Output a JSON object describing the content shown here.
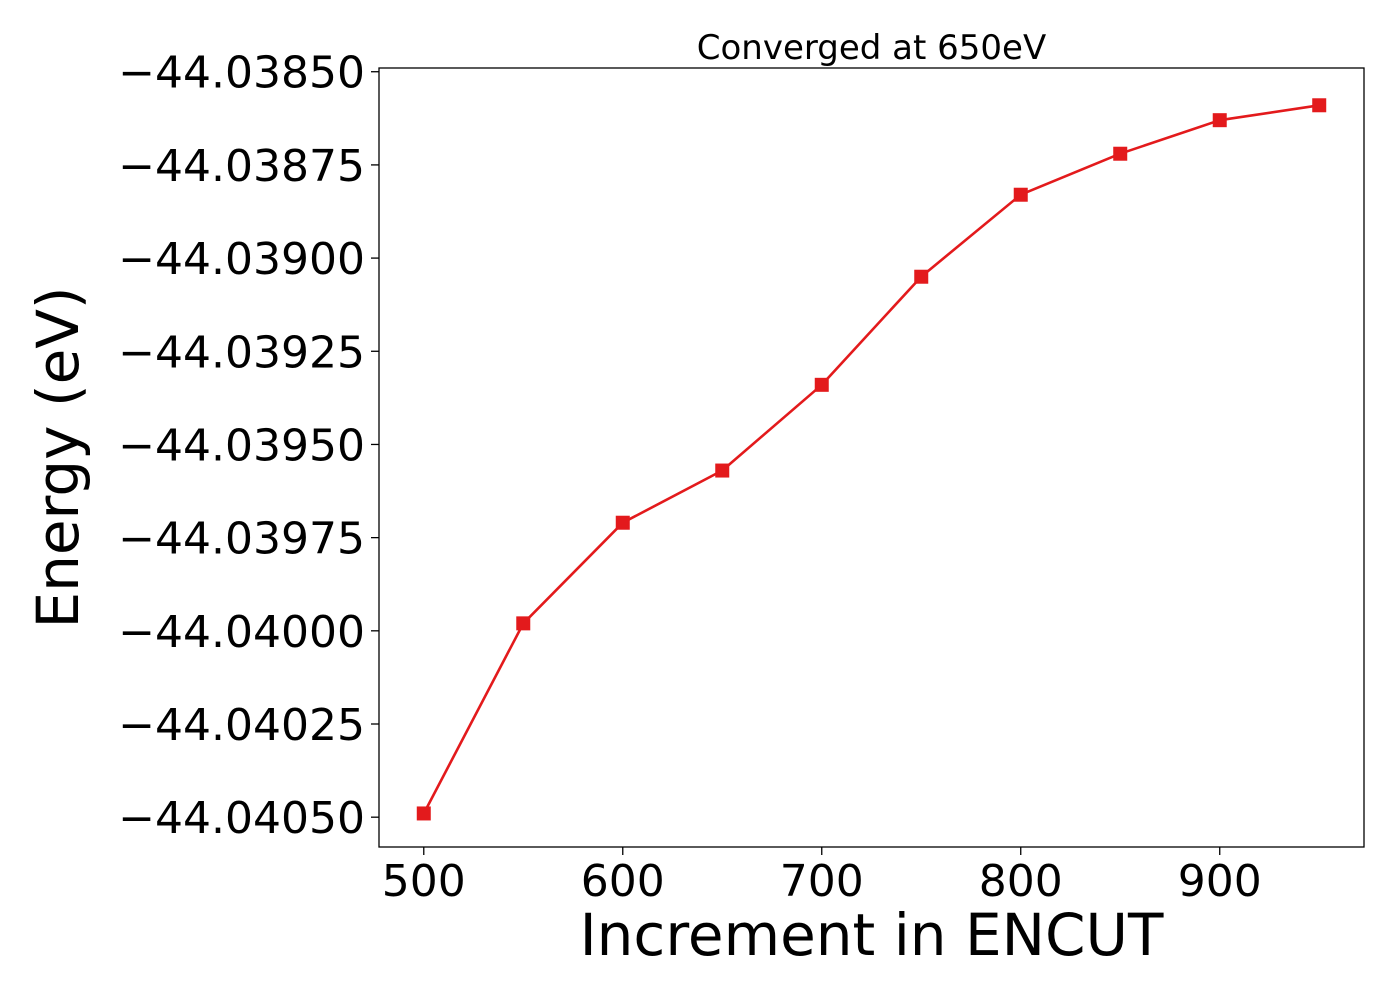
{
  "chart_data": {
    "type": "line",
    "title": "Converged at 650eV",
    "xlabel": "Increment in ENCUT",
    "ylabel": "Energy (eV)",
    "xlim": [
      477.5,
      972.5
    ],
    "ylim": [
      -44.04058,
      -44.03849
    ],
    "xticks": [
      500,
      600,
      700,
      800,
      900
    ],
    "xtick_labels": [
      "500",
      "600",
      "700",
      "800",
      "900"
    ],
    "yticks": [
      -44.0385,
      -44.03875,
      -44.039,
      -44.03925,
      -44.0395,
      -44.03975,
      -44.04,
      -44.04025,
      -44.0405
    ],
    "ytick_labels": [
      "−44.03850",
      "−44.03875",
      "−44.03900",
      "−44.03925",
      "−44.03950",
      "−44.03975",
      "−44.04000",
      "−44.04025",
      "−44.04050"
    ],
    "grid": false,
    "series": [
      {
        "marker": "square",
        "color": "#e31a1c",
        "x": [
          500,
          550,
          600,
          650,
          700,
          750,
          800,
          850,
          900,
          950
        ],
        "y": [
          -44.04049,
          -44.03998,
          -44.03971,
          -44.03957,
          -44.03934,
          -44.03905,
          -44.03883,
          -44.03872,
          -44.03863,
          -44.03859
        ]
      }
    ]
  }
}
